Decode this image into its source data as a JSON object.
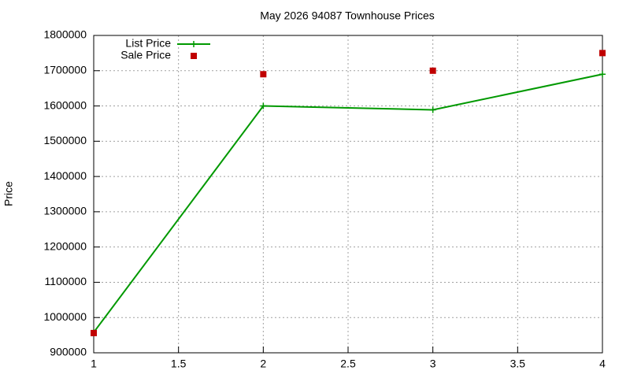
{
  "chart_data": {
    "type": "line",
    "title": "May 2026 94087 Townhouse Prices",
    "y_label": "Price",
    "x": [
      1,
      2,
      3,
      4
    ],
    "series": [
      {
        "name": "List Price",
        "color": "#009900",
        "style": "linespoints",
        "values": [
          958000,
          1600000,
          1589000,
          1690000
        ]
      },
      {
        "name": "Sale Price",
        "color": "#c00000",
        "style": "points",
        "values": [
          956000,
          1690000,
          1700000,
          1750000
        ]
      }
    ],
    "xlim": [
      1,
      4
    ],
    "xticks": [
      1,
      1.5,
      2,
      2.5,
      3,
      3.5,
      4
    ],
    "ylim": [
      900000,
      1800000
    ],
    "yticks": [
      900000,
      1000000,
      1100000,
      1200000,
      1300000,
      1400000,
      1500000,
      1600000,
      1700000,
      1800000
    ],
    "grid": true,
    "legend": "top-left"
  }
}
